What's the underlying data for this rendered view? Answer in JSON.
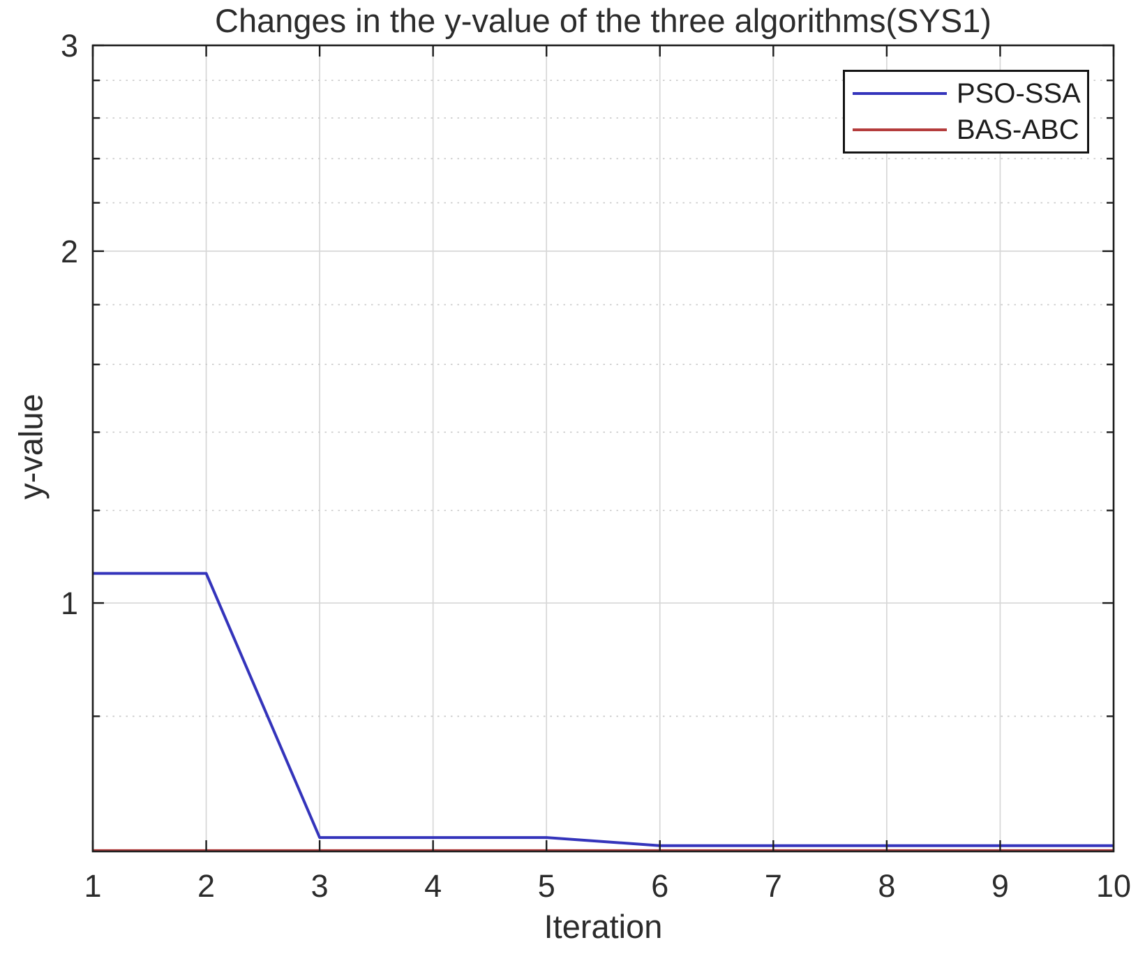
{
  "figure": {
    "title": "Changes in the y-value of the three algorithms(SYS1)"
  },
  "chart_data": {
    "type": "line",
    "title": "Changes in the y-value of the three algorithms(SYS1)",
    "xlabel": "Iteration",
    "ylabel": "y-value",
    "x": [
      1,
      2,
      3,
      4,
      5,
      6,
      7,
      8,
      9,
      10
    ],
    "series": [
      {
        "name": "PSO-SSA",
        "color": "#3434bb",
        "values": [
          1.06,
          1.06,
          0.63,
          0.63,
          0.63,
          0.62,
          0.62,
          0.62,
          0.62,
          0.62
        ]
      },
      {
        "name": "BAS-ABC",
        "color": "#b43c3c",
        "values": [
          0.614,
          0.614,
          0.614,
          0.614,
          0.614,
          0.614,
          0.614,
          0.614,
          0.614,
          0.614
        ]
      }
    ],
    "x_ticks": [
      1,
      2,
      3,
      4,
      5,
      6,
      7,
      8,
      9,
      10
    ],
    "y_ticks_major": [
      1,
      2,
      3
    ],
    "y_ticks_minor": [
      0.8,
      1.2,
      1.4,
      1.6,
      1.8,
      2.2,
      2.4,
      2.6,
      2.8
    ],
    "xlim": [
      1,
      10
    ],
    "ylim": [
      0.613,
      3
    ],
    "y_scale": "log",
    "grid": {
      "vertical_major": "solid",
      "horizontal_major": "solid",
      "horizontal_minor": "dotted"
    },
    "legend_position": "top-right"
  },
  "colors": {
    "background": "#ffffff",
    "axis": "#1c1c1c",
    "text": "#2b2b2b",
    "grid_major": "#d7d7d7",
    "grid_minor": "#c9c9c9",
    "legend_border": "#141414"
  }
}
